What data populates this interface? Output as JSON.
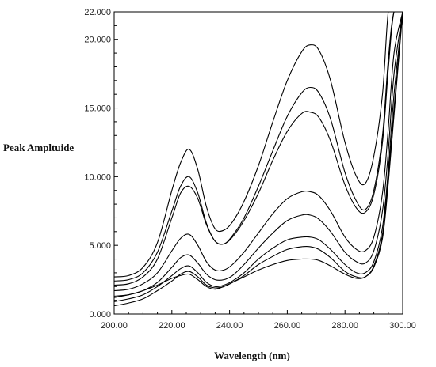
{
  "chart_data": {
    "type": "line",
    "xlabel": "Wavelength (nm)",
    "ylabel": "Peak Ampltuide",
    "xlim": [
      200,
      300
    ],
    "ylim": [
      0,
      22
    ],
    "x_ticks": [
      200,
      220,
      240,
      260,
      280,
      300
    ],
    "x_tick_labels": [
      "200.00",
      "220.00",
      "240.00",
      "260.00",
      "280.00",
      "300.00"
    ],
    "y_ticks": [
      0,
      5,
      10,
      15,
      20,
      22
    ],
    "y_tick_labels": [
      "0.000",
      "5.000",
      "10.000",
      "15.000",
      "20.000",
      "22.000"
    ],
    "grid": false,
    "line_color": "#000000",
    "x": [
      200,
      205,
      210,
      215,
      220,
      223,
      226,
      229,
      232,
      235,
      238,
      241,
      245,
      250,
      255,
      260,
      265,
      268,
      271,
      275,
      280,
      284,
      287,
      290,
      293,
      295,
      297,
      300
    ],
    "series": [
      {
        "values": [
          2.7,
          2.8,
          3.4,
          5.2,
          9.0,
          11.0,
          12.0,
          10.5,
          7.8,
          6.2,
          6.1,
          6.7,
          8.2,
          10.8,
          14.0,
          17.0,
          19.1,
          19.6,
          19.2,
          17.0,
          12.5,
          10.0,
          9.5,
          11.5,
          16.0,
          22.0,
          22.0,
          22.0
        ]
      },
      {
        "values": [
          2.4,
          2.5,
          3.0,
          4.5,
          7.5,
          9.3,
          10.0,
          8.8,
          6.6,
          5.3,
          5.1,
          5.7,
          7.0,
          9.3,
          11.9,
          14.4,
          16.1,
          16.5,
          16.1,
          14.2,
          10.3,
          8.2,
          7.6,
          9.0,
          13.0,
          18.5,
          22.0,
          22.0
        ]
      },
      {
        "values": [
          2.1,
          2.2,
          2.7,
          4.0,
          7.0,
          8.8,
          9.3,
          8.4,
          6.5,
          5.3,
          5.1,
          5.6,
          6.8,
          8.8,
          11.2,
          13.3,
          14.6,
          14.7,
          14.3,
          12.6,
          9.4,
          7.7,
          7.4,
          8.7,
          12.5,
          17.8,
          22.0,
          22.0
        ]
      },
      {
        "values": [
          1.7,
          1.8,
          2.2,
          3.0,
          4.6,
          5.5,
          5.8,
          5.0,
          3.8,
          3.2,
          3.2,
          3.6,
          4.5,
          5.9,
          7.3,
          8.4,
          8.9,
          8.9,
          8.6,
          7.5,
          5.6,
          4.7,
          4.6,
          5.6,
          8.8,
          13.5,
          19.0,
          22.0
        ]
      },
      {
        "values": [
          1.3,
          1.4,
          1.7,
          2.3,
          3.4,
          4.1,
          4.3,
          3.7,
          2.9,
          2.5,
          2.5,
          2.8,
          3.6,
          4.8,
          5.9,
          6.8,
          7.2,
          7.2,
          6.9,
          6.0,
          4.5,
          3.8,
          3.7,
          4.6,
          7.5,
          11.8,
          17.5,
          22.0
        ]
      },
      {
        "values": [
          0.9,
          1.1,
          1.4,
          2.0,
          2.8,
          3.3,
          3.5,
          3.0,
          2.3,
          2.0,
          2.1,
          2.4,
          3.0,
          4.0,
          4.8,
          5.4,
          5.6,
          5.6,
          5.4,
          4.7,
          3.6,
          3.0,
          3.0,
          3.8,
          6.3,
          10.5,
          16.0,
          22.0
        ]
      },
      {
        "values": [
          0.6,
          0.8,
          1.1,
          1.7,
          2.4,
          2.9,
          3.1,
          2.7,
          2.1,
          1.9,
          2.0,
          2.3,
          2.8,
          3.6,
          4.2,
          4.7,
          4.9,
          4.9,
          4.7,
          4.1,
          3.1,
          2.7,
          2.7,
          3.5,
          5.8,
          10.0,
          15.0,
          22.0
        ]
      },
      {
        "values": [
          1.2,
          1.4,
          1.7,
          2.1,
          2.6,
          2.8,
          2.9,
          2.5,
          2.0,
          1.8,
          2.0,
          2.3,
          2.7,
          3.2,
          3.6,
          3.9,
          4.0,
          4.0,
          3.9,
          3.5,
          2.9,
          2.6,
          2.7,
          3.4,
          5.5,
          9.5,
          14.5,
          22.0
        ]
      }
    ]
  }
}
